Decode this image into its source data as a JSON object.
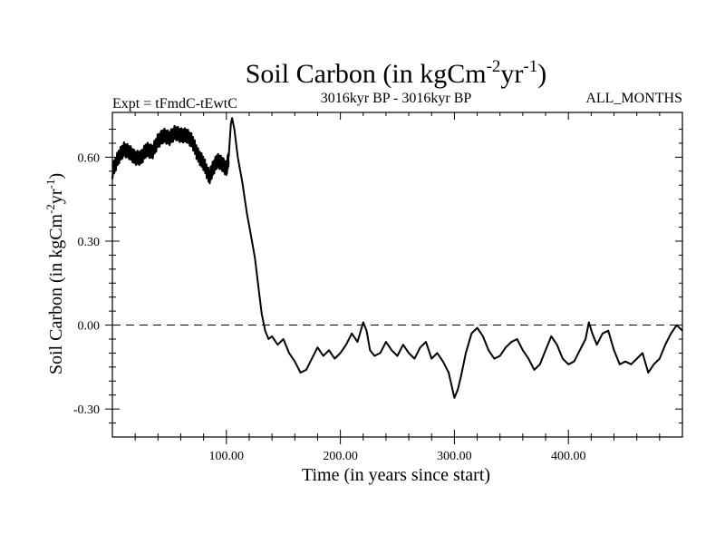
{
  "chart_data": {
    "type": "line",
    "title": {
      "main": "Soil Carbon (in kgCm",
      "sup1": "-2",
      "mid": "yr",
      "sup2": "-1",
      "end": ")"
    },
    "subtitle_left": "Expt = tFmdC-tEwtC",
    "subtitle_center": "3016kyr BP - 3016kyr BP",
    "subtitle_right": "ALL_MONTHS",
    "xlabel": "Time (in years since start)",
    "ylabel": {
      "main": "Soil Carbon (in kgCm",
      "sup1": "-2",
      "mid": "yr",
      "sup2": "-1",
      "end": ")"
    },
    "xlim": [
      0,
      500
    ],
    "ylim": [
      -0.4,
      0.76
    ],
    "x_ticks": [
      {
        "value": 100,
        "label": "100.00"
      },
      {
        "value": 200,
        "label": "200.00"
      },
      {
        "value": 300,
        "label": "300.00"
      },
      {
        "value": 400,
        "label": "400.00"
      }
    ],
    "y_ticks": [
      {
        "value": 0.6,
        "label": "0.60"
      },
      {
        "value": 0.3,
        "label": "0.30"
      },
      {
        "value": 0.0,
        "label": "0.00"
      },
      {
        "value": -0.3,
        "label": "-0.30"
      }
    ],
    "reference_line": {
      "y": 0,
      "style": "dashed"
    },
    "series": [
      {
        "name": "Soil Carbon",
        "noise_band": [
          [
            0,
            0.55
          ],
          [
            5,
            0.6
          ],
          [
            10,
            0.63
          ],
          [
            15,
            0.62
          ],
          [
            20,
            0.6
          ],
          [
            25,
            0.6
          ],
          [
            30,
            0.63
          ],
          [
            35,
            0.62
          ],
          [
            40,
            0.66
          ],
          [
            45,
            0.68
          ],
          [
            50,
            0.67
          ],
          [
            55,
            0.69
          ],
          [
            60,
            0.68
          ],
          [
            65,
            0.68
          ],
          [
            70,
            0.66
          ],
          [
            75,
            0.61
          ],
          [
            80,
            0.58
          ],
          [
            85,
            0.53
          ],
          [
            88,
            0.56
          ],
          [
            92,
            0.59
          ],
          [
            96,
            0.58
          ],
          [
            100,
            0.56
          ],
          [
            102,
            0.6
          ]
        ],
        "points": [
          [
            102,
            0.6
          ],
          [
            104,
            0.72
          ],
          [
            105,
            0.74
          ],
          [
            107,
            0.7
          ],
          [
            110,
            0.6
          ],
          [
            114,
            0.51
          ],
          [
            118,
            0.4
          ],
          [
            122,
            0.31
          ],
          [
            125,
            0.24
          ],
          [
            128,
            0.14
          ],
          [
            131,
            0.04
          ],
          [
            134,
            -0.02
          ],
          [
            137,
            -0.05
          ],
          [
            140,
            -0.04
          ],
          [
            145,
            -0.07
          ],
          [
            150,
            -0.05
          ],
          [
            155,
            -0.1
          ],
          [
            160,
            -0.13
          ],
          [
            165,
            -0.17
          ],
          [
            170,
            -0.16
          ],
          [
            175,
            -0.12
          ],
          [
            180,
            -0.08
          ],
          [
            185,
            -0.11
          ],
          [
            190,
            -0.09
          ],
          [
            195,
            -0.12
          ],
          [
            200,
            -0.1
          ],
          [
            205,
            -0.07
          ],
          [
            210,
            -0.03
          ],
          [
            215,
            -0.06
          ],
          [
            220,
            0.01
          ],
          [
            223,
            -0.02
          ],
          [
            226,
            -0.09
          ],
          [
            230,
            -0.11
          ],
          [
            235,
            -0.1
          ],
          [
            240,
            -0.06
          ],
          [
            245,
            -0.09
          ],
          [
            250,
            -0.11
          ],
          [
            255,
            -0.07
          ],
          [
            260,
            -0.1
          ],
          [
            265,
            -0.12
          ],
          [
            270,
            -0.08
          ],
          [
            275,
            -0.06
          ],
          [
            280,
            -0.12
          ],
          [
            285,
            -0.1
          ],
          [
            290,
            -0.13
          ],
          [
            295,
            -0.17
          ],
          [
            300,
            -0.26
          ],
          [
            303,
            -0.23
          ],
          [
            306,
            -0.18
          ],
          [
            310,
            -0.1
          ],
          [
            315,
            -0.03
          ],
          [
            320,
            -0.01
          ],
          [
            325,
            -0.04
          ],
          [
            330,
            -0.09
          ],
          [
            335,
            -0.12
          ],
          [
            340,
            -0.11
          ],
          [
            345,
            -0.08
          ],
          [
            350,
            -0.06
          ],
          [
            355,
            -0.05
          ],
          [
            360,
            -0.09
          ],
          [
            365,
            -0.12
          ],
          [
            370,
            -0.16
          ],
          [
            375,
            -0.14
          ],
          [
            380,
            -0.09
          ],
          [
            385,
            -0.04
          ],
          [
            390,
            -0.07
          ],
          [
            395,
            -0.12
          ],
          [
            400,
            -0.14
          ],
          [
            405,
            -0.13
          ],
          [
            410,
            -0.09
          ],
          [
            415,
            -0.05
          ],
          [
            418,
            0.01
          ],
          [
            421,
            -0.03
          ],
          [
            425,
            -0.07
          ],
          [
            430,
            -0.03
          ],
          [
            435,
            -0.02
          ],
          [
            440,
            -0.09
          ],
          [
            445,
            -0.14
          ],
          [
            450,
            -0.13
          ],
          [
            455,
            -0.14
          ],
          [
            460,
            -0.12
          ],
          [
            465,
            -0.1
          ],
          [
            470,
            -0.17
          ],
          [
            475,
            -0.14
          ],
          [
            480,
            -0.12
          ],
          [
            485,
            -0.07
          ],
          [
            490,
            -0.03
          ],
          [
            495,
            0.0
          ],
          [
            500,
            -0.02
          ]
        ]
      }
    ]
  }
}
